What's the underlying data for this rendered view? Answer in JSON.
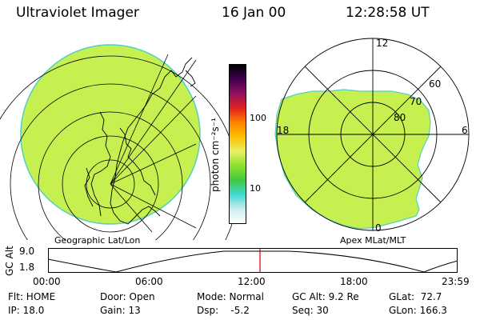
{
  "header": {
    "title": "Ultraviolet Imager",
    "date": "16 Jan 00",
    "time": "12:28:58 UT"
  },
  "colors": {
    "aurora_fill": "#c6f050",
    "limb": "#4fd0c8",
    "lines": "#000000",
    "marker": "#cc0000"
  },
  "colorbar": {
    "unit": "photon cm⁻²s⁻¹",
    "ticks": [
      "100",
      "10"
    ],
    "stops": [
      "#ffffff",
      "#c8ecec",
      "#40d8d0",
      "#40c840",
      "#90e030",
      "#e8f060",
      "#ffc000",
      "#ff8000",
      "#e02020",
      "#901060",
      "#400050",
      "#000000"
    ]
  },
  "geo_panel": {
    "caption": "Geographic Lat/Lon"
  },
  "apex_panel": {
    "caption": "Apex MLat/MLT",
    "mlt_labels": {
      "top": "12",
      "left": "18",
      "right": "6",
      "bottom": "0"
    },
    "lat_labels": [
      "60",
      "70",
      "80"
    ]
  },
  "altitude_plot": {
    "ylabel": "GC Alt",
    "yticks": [
      "9.0",
      "1.8"
    ],
    "xticks": [
      "00:00",
      "06:00",
      "12:00",
      "18:00",
      "23:59"
    ],
    "current_time": "12:28:58"
  },
  "status": {
    "flt": "Flt: HOME",
    "ip": "IP: 18.0",
    "door": "Door: Open",
    "gain": "Gain: 13",
    "mode": "Mode: Normal",
    "dsp": "Dsp:    -5.2",
    "gc_alt": "GC Alt: 9.2 Re",
    "seq": "Seq: 30",
    "glat": "GLat:  72.7",
    "glon": "GLon: 166.3"
  }
}
